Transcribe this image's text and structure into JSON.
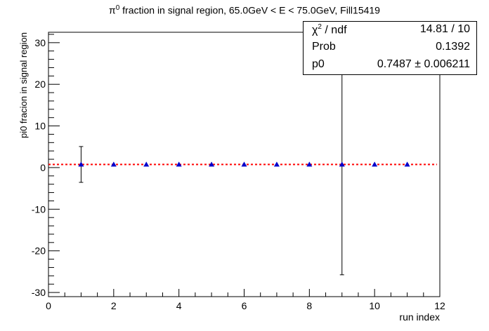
{
  "chart_data": {
    "type": "scatter",
    "title_prefix": "π",
    "title_sup": "0",
    "title_rest": " fraction in signal region, 65.0GeV < E < 75.0GeV, Fill15419",
    "xlabel": "run index",
    "ylabel": "pi0 fracion in signal region",
    "xlim": [
      0,
      12
    ],
    "ylim": [
      -31,
      32.5
    ],
    "x_ticks": [
      0,
      2,
      4,
      6,
      8,
      10,
      12
    ],
    "y_ticks": [
      -30,
      -20,
      -10,
      0,
      10,
      20,
      30
    ],
    "series": [
      {
        "marker": "triangle",
        "color": "#0000cc",
        "points": [
          {
            "x": 1,
            "y": 0.75,
            "err": 4.3
          },
          {
            "x": 2,
            "y": 0.75,
            "err": 0.0
          },
          {
            "x": 3,
            "y": 0.75,
            "err": 0.0
          },
          {
            "x": 4,
            "y": 0.75,
            "err": 0.0
          },
          {
            "x": 5,
            "y": 0.75,
            "err": 0.0
          },
          {
            "x": 6,
            "y": 0.75,
            "err": 0.0
          },
          {
            "x": 7,
            "y": 0.75,
            "err": 0.0
          },
          {
            "x": 8,
            "y": 0.75,
            "err": 0.0
          },
          {
            "x": 9,
            "y": 0.75,
            "err": 26.5
          },
          {
            "x": 10,
            "y": 0.75,
            "err": 0.0
          },
          {
            "x": 11,
            "y": 0.75,
            "err": 0.0
          }
        ]
      }
    ],
    "fit": {
      "y": 0.7487,
      "x_from": 0,
      "x_to": 12,
      "color": "#ff0000",
      "style": "dotted"
    },
    "stats": {
      "chi2_symbol": "χ",
      "chi2_sup": "2",
      "chi2_rest": " / ndf",
      "chi2_value": "14.81 / 10",
      "prob_label": "Prob",
      "prob_value": "0.1392",
      "p0_label": "p0",
      "p0_value": "0.7487 ± 0.006211"
    }
  }
}
